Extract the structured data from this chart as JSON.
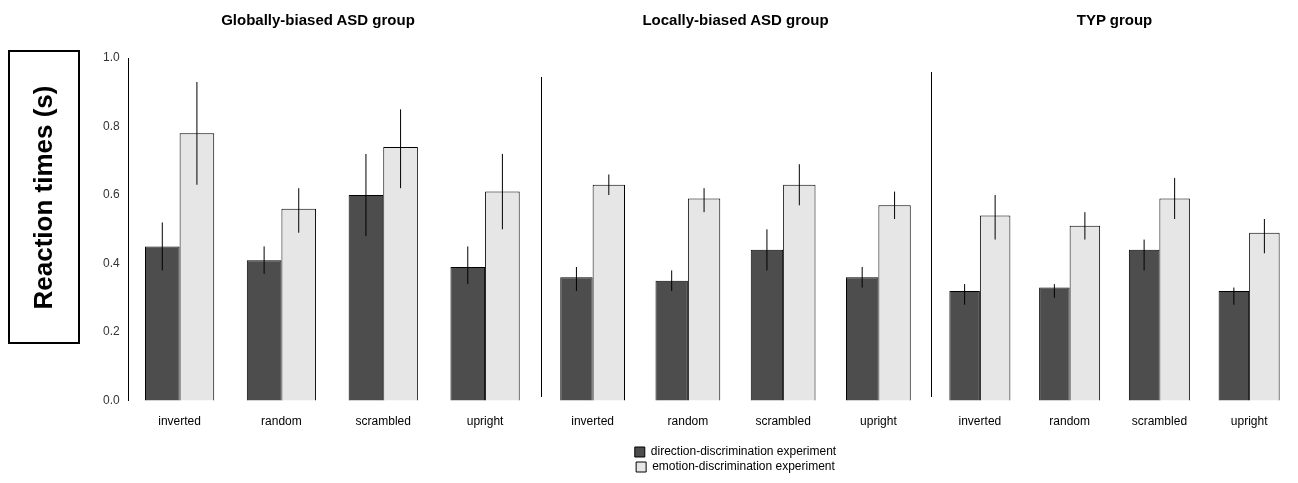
{
  "chart_data": [
    {
      "type": "bar",
      "title": "Globally-biased ASD group",
      "ylabel": "Reaction times (s)",
      "categories": [
        "inverted",
        "random",
        "scrambled",
        "upright"
      ],
      "ylim": [
        0,
        1
      ],
      "yticks": [
        {
          "value": 0,
          "label": "0.0"
        },
        0.2,
        0.4,
        0.6,
        0.8,
        {
          "value": 1,
          "label": "1.0"
        }
      ],
      "grid": false,
      "legend": false,
      "series": [
        {
          "color": "#4d4d4d",
          "values": [
            0.45,
            0.41,
            0.6,
            0.39
          ],
          "errors": [
            [
              0.38,
              0.52
            ],
            [
              0.37,
              0.45
            ],
            [
              0.48,
              0.72
            ],
            [
              0.34,
              0.45
            ]
          ]
        },
        {
          "color": "#e6e6e6",
          "values": [
            0.78,
            0.56,
            0.74,
            0.61
          ],
          "errors": [
            [
              0.63,
              0.93
            ],
            [
              0.49,
              0.62
            ],
            [
              0.62,
              0.85
            ],
            [
              0.5,
              0.72
            ]
          ]
        }
      ]
    },
    {
      "type": "bar",
      "title": "Locally-biased ASD group",
      "categories": [
        "inverted",
        "random",
        "scrambled",
        "upright"
      ],
      "ylim": [
        0,
        1
      ],
      "yticks": [
        0,
        0.2,
        0.4,
        0.6,
        0.8,
        1
      ],
      "tick_labels": "x",
      "grid": false,
      "legend": "bottom",
      "series": [
        {
          "name": "direction-discrimination experiment",
          "color": "#4d4d4d",
          "values": [
            0.36,
            0.35,
            0.44,
            0.36
          ],
          "errors": [
            [
              0.32,
              0.39
            ],
            [
              0.32,
              0.38
            ],
            [
              0.38,
              0.5
            ],
            [
              0.33,
              0.39
            ]
          ]
        },
        {
          "name": "emotion-discrimination experiment",
          "color": "#e6e6e6",
          "values": [
            0.63,
            0.59,
            0.63,
            0.57
          ],
          "errors": [
            [
              0.6,
              0.66
            ],
            [
              0.55,
              0.62
            ],
            [
              0.57,
              0.69
            ],
            [
              0.53,
              0.61
            ]
          ]
        }
      ]
    },
    {
      "type": "bar",
      "title": "TYP group",
      "categories": [
        "inverted",
        "random",
        "scrambled",
        "upright"
      ],
      "ylim": [
        0,
        1
      ],
      "yticks": [
        0,
        0.2,
        0.4,
        0.6,
        0.8,
        1
      ],
      "tick_labels": "x",
      "grid": false,
      "legend": false,
      "series": [
        {
          "color": "#4d4d4d",
          "values": [
            0.32,
            0.33,
            0.44,
            0.32
          ],
          "errors": [
            [
              0.28,
              0.34
            ],
            [
              0.3,
              0.34
            ],
            [
              0.38,
              0.47
            ],
            [
              0.28,
              0.33
            ]
          ]
        },
        {
          "color": "#e6e6e6",
          "values": [
            0.54,
            0.51,
            0.59,
            0.49
          ],
          "errors": [
            [
              0.47,
              0.6
            ],
            [
              0.47,
              0.55
            ],
            [
              0.53,
              0.65
            ],
            [
              0.43,
              0.53
            ]
          ]
        }
      ]
    }
  ]
}
